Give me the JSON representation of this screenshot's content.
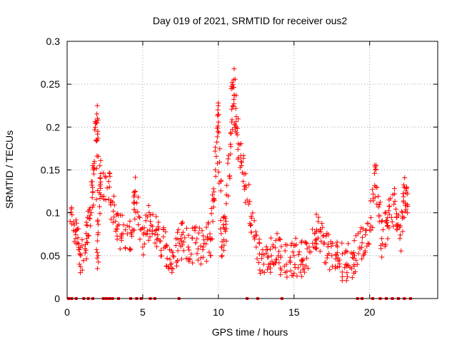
{
  "chart_data": {
    "type": "scatter",
    "title": "Day 019 of 2021, SRMTID for receiver ous2",
    "xlabel": "GPS time / hours",
    "ylabel": "SRMTID / TECUs",
    "xlim": [
      0,
      24.5
    ],
    "ylim": [
      0,
      0.3
    ],
    "grid": true,
    "marker": "plus",
    "color": "#ff0000",
    "x_ticks": [
      0,
      5,
      10,
      15,
      20
    ],
    "x_tick_labels": [
      "0",
      "5",
      "10",
      "15",
      "20"
    ],
    "y_ticks": [
      0,
      0.05,
      0.1,
      0.15,
      0.2,
      0.25,
      0.3
    ],
    "y_tick_labels": [
      "0",
      "0.05",
      "0.1",
      "0.15",
      "0.2",
      "0.25",
      "0.3"
    ],
    "key_points": [
      {
        "x": 0.2,
        "y": 0.09
      },
      {
        "x": 0.6,
        "y": 0.08
      },
      {
        "x": 0.9,
        "y": 0.05
      },
      {
        "x": 1.3,
        "y": 0.07
      },
      {
        "x": 1.6,
        "y": 0.1
      },
      {
        "x": 1.8,
        "y": 0.16
      },
      {
        "x": 2.0,
        "y": 0.21
      },
      {
        "x": 2.0,
        "y": 0.035
      },
      {
        "x": 2.2,
        "y": 0.14
      },
      {
        "x": 2.8,
        "y": 0.13
      },
      {
        "x": 3.2,
        "y": 0.09
      },
      {
        "x": 3.6,
        "y": 0.075
      },
      {
        "x": 4.3,
        "y": 0.08
      },
      {
        "x": 4.5,
        "y": 0.125
      },
      {
        "x": 5.0,
        "y": 0.06
      },
      {
        "x": 5.5,
        "y": 0.09
      },
      {
        "x": 6.0,
        "y": 0.07
      },
      {
        "x": 6.5,
        "y": 0.06
      },
      {
        "x": 7.0,
        "y": 0.05
      },
      {
        "x": 7.5,
        "y": 0.07
      },
      {
        "x": 8.0,
        "y": 0.06
      },
      {
        "x": 8.5,
        "y": 0.065
      },
      {
        "x": 9.0,
        "y": 0.06
      },
      {
        "x": 9.5,
        "y": 0.07
      },
      {
        "x": 9.8,
        "y": 0.15
      },
      {
        "x": 10.0,
        "y": 0.225
      },
      {
        "x": 10.2,
        "y": 0.06
      },
      {
        "x": 10.5,
        "y": 0.09
      },
      {
        "x": 10.8,
        "y": 0.18
      },
      {
        "x": 11.0,
        "y": 0.255
      },
      {
        "x": 11.2,
        "y": 0.2
      },
      {
        "x": 11.5,
        "y": 0.16
      },
      {
        "x": 12.0,
        "y": 0.11
      },
      {
        "x": 12.5,
        "y": 0.06
      },
      {
        "x": 13.0,
        "y": 0.04
      },
      {
        "x": 13.5,
        "y": 0.05
      },
      {
        "x": 14.0,
        "y": 0.055
      },
      {
        "x": 14.5,
        "y": 0.04
      },
      {
        "x": 15.0,
        "y": 0.05
      },
      {
        "x": 15.5,
        "y": 0.045
      },
      {
        "x": 16.0,
        "y": 0.06
      },
      {
        "x": 16.5,
        "y": 0.08
      },
      {
        "x": 17.0,
        "y": 0.065
      },
      {
        "x": 17.5,
        "y": 0.05
      },
      {
        "x": 18.0,
        "y": 0.045
      },
      {
        "x": 18.5,
        "y": 0.04
      },
      {
        "x": 19.0,
        "y": 0.05
      },
      {
        "x": 19.5,
        "y": 0.065
      },
      {
        "x": 20.0,
        "y": 0.08
      },
      {
        "x": 20.4,
        "y": 0.15
      },
      {
        "x": 20.8,
        "y": 0.07
      },
      {
        "x": 21.2,
        "y": 0.085
      },
      {
        "x": 21.6,
        "y": 0.11
      },
      {
        "x": 22.0,
        "y": 0.07
      },
      {
        "x": 22.3,
        "y": 0.13
      },
      {
        "x": 22.5,
        "y": 0.1
      }
    ],
    "zero_marker_times": [
      0.1,
      0.3,
      0.6,
      1.1,
      1.4,
      1.7,
      2.4,
      2.6,
      2.8,
      3.0,
      3.4,
      4.2,
      4.6,
      4.9,
      5.5,
      5.8,
      7.4,
      11.9,
      12.6,
      14.2,
      19.2,
      19.5,
      20.2,
      20.7,
      21.1,
      21.5,
      21.9,
      22.3,
      22.7
    ]
  }
}
